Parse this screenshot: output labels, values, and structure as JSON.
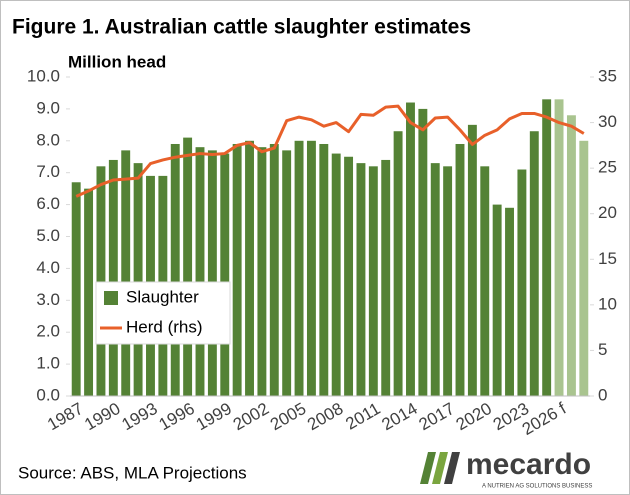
{
  "chart_data": {
    "type": "bar_line",
    "title": "Figure 1. Australian cattle slaughter estimates",
    "y_label": "Million head",
    "categories": [
      "1987",
      null,
      null,
      "1990",
      null,
      null,
      "1993",
      null,
      null,
      "1996",
      null,
      null,
      "1999",
      null,
      null,
      "2002",
      null,
      null,
      "2005",
      null,
      null,
      "2008",
      null,
      null,
      "2011",
      null,
      null,
      "2014",
      null,
      null,
      "2017",
      null,
      null,
      "2020",
      null,
      null,
      "2023",
      null,
      null,
      "2026 f",
      null,
      null
    ],
    "series": [
      {
        "name": "Slaughter",
        "kind": "bar",
        "color": "#548235",
        "colors": [
          "#548235",
          "#548235",
          "#548235",
          "#548235",
          "#548235",
          "#548235",
          "#548235",
          "#548235",
          "#548235",
          "#548235",
          "#548235",
          "#548235",
          "#548235",
          "#548235",
          "#548235",
          "#548235",
          "#548235",
          "#548235",
          "#548235",
          "#548235",
          "#548235",
          "#548235",
          "#548235",
          "#548235",
          "#548235",
          "#548235",
          "#548235",
          "#548235",
          "#548235",
          "#548235",
          "#548235",
          "#548235",
          "#548235",
          "#548235",
          "#548235",
          "#548235",
          "#548235",
          "#548235",
          "#548235",
          "#a9c48f",
          "#a9c48f",
          "#a9c48f"
        ],
        "values": [
          6.7,
          6.5,
          7.2,
          7.4,
          7.7,
          7.3,
          6.9,
          6.9,
          7.9,
          8.1,
          7.8,
          7.7,
          7.6,
          7.9,
          8.0,
          7.8,
          7.9,
          7.7,
          8.0,
          8.0,
          7.9,
          7.6,
          7.5,
          7.3,
          7.2,
          7.4,
          8.3,
          9.2,
          9.0,
          7.3,
          7.2,
          7.9,
          8.5,
          7.2,
          6.0,
          5.9,
          7.1,
          8.3,
          9.3,
          9.3,
          8.8,
          8.0
        ]
      },
      {
        "name": "Herd (rhs)",
        "kind": "line",
        "axis": "y2",
        "color": "#e8602a",
        "values": [
          21.9,
          22.5,
          23.2,
          23.7,
          23.8,
          23.9,
          25.5,
          25.9,
          26.2,
          26.4,
          26.6,
          26.5,
          26.6,
          27.5,
          27.8,
          26.8,
          27.2,
          30.2,
          30.6,
          30.3,
          29.6,
          30.0,
          29.0,
          30.9,
          30.8,
          31.7,
          31.8,
          30.0,
          29.2,
          30.5,
          30.6,
          29.2,
          27.6,
          28.6,
          29.2,
          30.4,
          31.0,
          31.0,
          30.6,
          30.0,
          29.6,
          28.8
        ]
      }
    ],
    "ylim": [
      0,
      10
    ],
    "yticks": [
      {
        "value": 0,
        "label": "0.0"
      },
      {
        "value": 1,
        "label": "1.0"
      },
      {
        "value": 2,
        "label": "2.0"
      },
      {
        "value": 3,
        "label": "3.0"
      },
      {
        "value": 4,
        "label": "4.0"
      },
      {
        "value": 5,
        "label": "5.0"
      },
      {
        "value": 6,
        "label": "6.0"
      },
      {
        "value": 7,
        "label": "7.0"
      },
      {
        "value": 8,
        "label": "8.0"
      },
      {
        "value": 9,
        "label": "9.0"
      },
      {
        "value": 10,
        "label": "10.0"
      }
    ],
    "y2lim": [
      0,
      35
    ],
    "y2ticks": [
      0,
      5,
      10,
      15,
      20,
      25,
      30,
      35
    ],
    "legend": "lower-left",
    "source": "Source: ABS, MLA Projections",
    "logo_text": "mecardo",
    "logo_tagline": "A NUTRIEN AG SOLUTIONS BUSINESS"
  }
}
